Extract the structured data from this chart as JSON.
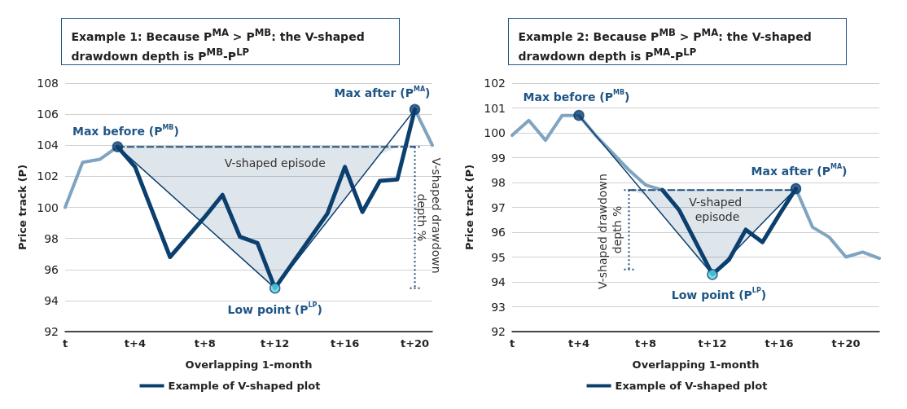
{
  "chart_data": [
    {
      "type": "line",
      "title": "Example 1: Because P$^{MA}$ > P$^{MB}$: the V-shaped drawdown depth is P$^{MB}$-P$^{LP}$",
      "xlabel": "Overlapping 1-month",
      "ylabel": "Price track (P)",
      "categories": [
        "t",
        null,
        null,
        null,
        "t+4",
        null,
        null,
        null,
        "t+8",
        null,
        null,
        null,
        "t+12",
        null,
        null,
        null,
        "t+16",
        null,
        null,
        null,
        "t+20",
        null
      ],
      "ylim": [
        92,
        108
      ],
      "yticks": [
        92,
        94,
        96,
        98,
        100,
        102,
        104,
        106,
        108
      ],
      "grid": "y",
      "legend": "bottom",
      "marker": "none",
      "series": [
        {
          "color": "#7fa4c1",
          "values": [
            100,
            102.9,
            103.1,
            103.9,
            null,
            null,
            null,
            null,
            null,
            null,
            null,
            null,
            null,
            null,
            null,
            null,
            null,
            null,
            null,
            null,
            106.3,
            104.0
          ]
        },
        {
          "name": "Example of V-shaped plot",
          "color": "#0b3f6e",
          "values": [
            null,
            null,
            null,
            103.9,
            102.6,
            99.7,
            96.8,
            98.1,
            99.4,
            100.8,
            98.1,
            97.7,
            94.8,
            96.4,
            98.0,
            99.6,
            102.6,
            99.7,
            101.7,
            101.8,
            106.3,
            null
          ]
        },
        {
          "color": "#0b3f6e",
          "values": [
            null,
            null,
            null,
            103.9,
            null,
            null,
            null,
            null,
            null,
            null,
            null,
            null,
            94.8,
            null,
            null,
            null,
            null,
            null,
            null,
            null,
            106.3,
            null
          ]
        },
        {
          "color": "#1f4e7a",
          "line_style": "dashed",
          "values": [
            null,
            null,
            null,
            103.9,
            103.9,
            103.9,
            103.9,
            103.9,
            103.9,
            103.9,
            103.9,
            103.9,
            103.9,
            103.9,
            103.9,
            103.9,
            103.9,
            103.9,
            103.9,
            103.9,
            103.9,
            null
          ],
          "lower": [
            null,
            null,
            null,
            103.9,
            102.9,
            101.9,
            100.9,
            99.9,
            98.9,
            97.8,
            96.8,
            95.8,
            94.8,
            96.2,
            97.7,
            99.1,
            100.6,
            102.0,
            103.4,
            103.9,
            103.9,
            null
          ],
          "upper": [
            null,
            null,
            null,
            103.9,
            103.9,
            103.9,
            103.9,
            103.9,
            103.9,
            103.9,
            103.9,
            103.9,
            103.9,
            103.9,
            103.9,
            103.9,
            103.9,
            103.9,
            103.9,
            103.9,
            103.9,
            null
          ],
          "errors": [
            null,
            null,
            null,
            null,
            null,
            null,
            null,
            null,
            null,
            null,
            null,
            null,
            null,
            null,
            null,
            null,
            null,
            null,
            null,
            null,
            [
              94.8,
              103.9
            ],
            null
          ]
        },
        {
          "type": "scatter",
          "color": "#0b3f6e",
          "marker": "circle",
          "colors": [
            null,
            null,
            null,
            "#0b3f6e",
            null,
            null,
            null,
            null,
            null,
            null,
            null,
            null,
            "#5ad8e6",
            null,
            null,
            null,
            null,
            null,
            null,
            null,
            "#0b3f6e",
            null
          ],
          "values": [
            null,
            null,
            null,
            103.9,
            null,
            null,
            null,
            null,
            null,
            null,
            null,
            null,
            94.8,
            null,
            null,
            null,
            null,
            null,
            null,
            null,
            106.3,
            null
          ]
        }
      ],
      "annotations": [
        "Max before (P$^{MB}$)",
        "Max after (P$^{MA}$)",
        "Low point (P$^{LP}$)",
        "V-shaped episode",
        "V-shaped drawdown depth %"
      ]
    },
    {
      "type": "line",
      "title": "Example 2: Because P$^{MB}$ > P$^{MA}$: the V-shaped drawdown depth is P$^{MA}$-P$^{LP}$",
      "xlabel": "Overlapping 1-month",
      "ylabel": "Price track (P)",
      "categories": [
        "t",
        null,
        null,
        null,
        "t+4",
        null,
        null,
        null,
        "t+8",
        null,
        null,
        null,
        "t+12",
        null,
        null,
        null,
        "t+16",
        null,
        null,
        null,
        "t+20",
        null,
        null
      ],
      "ylim": [
        92,
        102
      ],
      "yticks": [
        92,
        93,
        94,
        95,
        96,
        97,
        98,
        99,
        100,
        101,
        102
      ],
      "grid": "y",
      "legend": "bottom",
      "marker": "none",
      "series": [
        {
          "color": "#7fa4c1",
          "values": [
            99.9,
            100.5,
            99.7,
            100.7,
            100.7,
            99.9,
            99.2,
            98.5,
            97.9,
            97.7,
            null,
            null,
            null,
            null,
            null,
            null,
            null,
            97.75,
            96.2,
            95.8,
            95.0,
            95.2,
            94.95
          ]
        },
        {
          "name": "Example of V-shaped plot",
          "color": "#0b3f6e",
          "values": [
            null,
            null,
            null,
            null,
            null,
            null,
            null,
            null,
            null,
            97.7,
            96.9,
            95.6,
            94.3,
            94.9,
            96.1,
            95.6,
            96.7,
            97.75,
            null,
            null,
            null,
            null,
            null
          ]
        },
        {
          "color": "#0b3f6e",
          "values": [
            null,
            null,
            null,
            null,
            100.7,
            null,
            null,
            null,
            null,
            null,
            null,
            null,
            94.3,
            null,
            null,
            null,
            null,
            97.75,
            null,
            null,
            null,
            null,
            null
          ]
        },
        {
          "color": "#1f4e7a",
          "line_style": "dashed",
          "values": [
            null,
            null,
            null,
            null,
            null,
            null,
            null,
            97.7,
            97.7,
            97.7,
            97.7,
            97.7,
            97.7,
            97.7,
            97.7,
            97.7,
            97.7,
            97.7,
            null,
            null,
            null,
            null,
            null
          ],
          "lower": [
            null,
            null,
            null,
            null,
            null,
            null,
            null,
            97.7,
            97.5,
            96.7,
            95.9,
            95.1,
            94.3,
            95.0,
            95.7,
            96.4,
            97.1,
            97.7,
            null,
            null,
            null,
            null,
            null
          ],
          "upper": [
            null,
            null,
            null,
            null,
            null,
            null,
            null,
            97.7,
            97.7,
            97.7,
            97.7,
            97.7,
            97.7,
            97.7,
            97.7,
            97.7,
            97.7,
            97.7,
            null,
            null,
            null,
            null,
            null
          ],
          "errors": [
            null,
            null,
            null,
            null,
            null,
            null,
            null,
            [
              94.5,
              97.7
            ],
            null,
            null,
            null,
            null,
            null,
            null,
            null,
            null,
            null,
            null,
            null,
            null,
            null,
            null,
            null
          ]
        },
        {
          "type": "scatter",
          "color": "#0b3f6e",
          "marker": "circle",
          "colors": [
            null,
            null,
            null,
            null,
            "#0b3f6e",
            null,
            null,
            null,
            null,
            null,
            null,
            null,
            "#5ad8e6",
            null,
            null,
            null,
            null,
            "#0b3f6e",
            null,
            null,
            null,
            null,
            null
          ],
          "values": [
            null,
            null,
            null,
            null,
            100.7,
            null,
            null,
            null,
            null,
            null,
            null,
            null,
            94.3,
            null,
            null,
            null,
            null,
            97.75,
            null,
            null,
            null,
            null,
            null
          ]
        }
      ],
      "annotations": [
        "Max before (P$^{MB}$)",
        "Max after (P$^{MA}$)",
        "Low point (P$^{LP}$)",
        "V-shaped episode",
        "V-shaped drawdown depth %"
      ]
    }
  ]
}
